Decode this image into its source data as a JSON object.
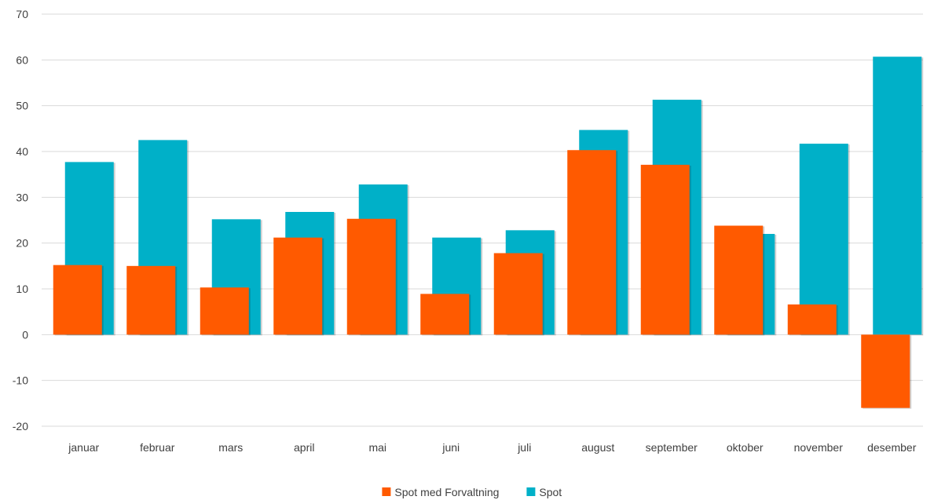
{
  "chart_data": {
    "type": "bar",
    "categories": [
      "januar",
      "februar",
      "mars",
      "april",
      "mai",
      "juni",
      "juli",
      "august",
      "september",
      "oktober",
      "november",
      "desember"
    ],
    "series": [
      {
        "name": "Spot",
        "color": "#00B0C8",
        "values": [
          37.7,
          42.5,
          25.2,
          26.8,
          32.8,
          21.2,
          22.8,
          44.7,
          51.3,
          22.0,
          41.7,
          60.7
        ]
      },
      {
        "name": "Spot med Forvaltning",
        "color": "#FF5A00",
        "values": [
          15.2,
          15.0,
          10.3,
          21.2,
          25.3,
          8.9,
          17.8,
          40.3,
          37.1,
          23.8,
          6.6,
          -16.0
        ]
      }
    ],
    "y_ticks": [
      "70",
      "60",
      "50",
      "40",
      "30",
      "20",
      "10",
      "0",
      "-10",
      "-20"
    ],
    "ylim": [
      -20,
      70
    ],
    "grid": true,
    "legend": {
      "position": "bottom",
      "items": [
        {
          "label": "Spot med Forvaltning",
          "color": "#FF5A00"
        },
        {
          "label": "Spot",
          "color": "#00B0C8"
        }
      ]
    },
    "title": "",
    "xlabel": "",
    "ylabel": ""
  }
}
